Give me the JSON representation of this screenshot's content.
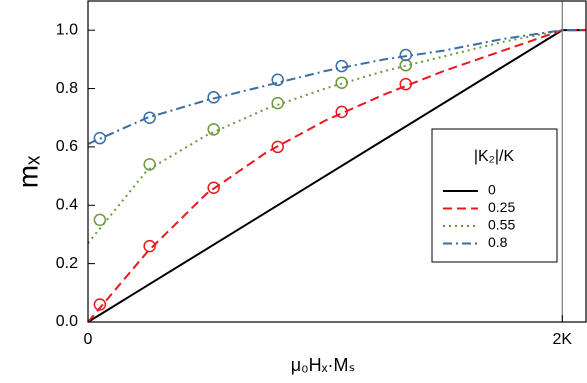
{
  "chart_data": {
    "type": "line",
    "x_label": "μ₀Hₓ·Mₛ",
    "y_label": "mₓ",
    "legend_title": "|K₂|/K",
    "xlim": [
      0,
      2.1
    ],
    "ylim": [
      0,
      1.1
    ],
    "xticks": [
      0,
      {
        "value": 2,
        "label": "2K"
      }
    ],
    "yticks": [
      {
        "value": 0,
        "label": "0.0"
      },
      0.2,
      0.4,
      0.6,
      0.8,
      {
        "value": 1,
        "label": "1.0"
      }
    ],
    "reference_x": 2,
    "series": [
      {
        "name": "0",
        "color": "#000000",
        "dash": "solid",
        "x": [
          0,
          2,
          2.1
        ],
        "values": [
          0,
          1,
          1
        ]
      },
      {
        "name": "0.25",
        "color": "#e8191c",
        "dash": "dashed",
        "x": [
          0,
          0.25,
          0.5,
          0.75,
          1,
          1.25,
          1.5,
          1.75,
          2,
          2.1
        ],
        "values": [
          0,
          0.24,
          0.44,
          0.58,
          0.69,
          0.78,
          0.86,
          0.93,
          1,
          1
        ],
        "marker_x": [
          0.05,
          0.26,
          0.53,
          0.8,
          1.07,
          1.34
        ],
        "marker_values": [
          0.06,
          0.26,
          0.46,
          0.6,
          0.72,
          0.815
        ]
      },
      {
        "name": "0.55",
        "color": "#6a9a3a",
        "dash": "dotted",
        "x": [
          0,
          0.25,
          0.5,
          0.75,
          1,
          1.25,
          1.5,
          1.75,
          2,
          2.1
        ],
        "values": [
          0.27,
          0.52,
          0.64,
          0.73,
          0.8,
          0.86,
          0.91,
          0.96,
          1,
          1
        ],
        "marker_x": [
          0.05,
          0.26,
          0.53,
          0.8,
          1.07,
          1.34
        ],
        "marker_values": [
          0.35,
          0.54,
          0.66,
          0.75,
          0.82,
          0.88
        ]
      },
      {
        "name": "0.8",
        "color": "#3a6ea5",
        "dash": "dashdot",
        "x": [
          0,
          0.25,
          0.5,
          0.75,
          1,
          1.25,
          1.5,
          1.75,
          2,
          2.1
        ],
        "values": [
          0.61,
          0.7,
          0.76,
          0.81,
          0.86,
          0.9,
          0.93,
          0.97,
          1,
          1
        ],
        "marker_x": [
          0.05,
          0.26,
          0.53,
          0.8,
          1.07,
          1.34
        ],
        "marker_values": [
          0.63,
          0.7,
          0.77,
          0.83,
          0.877,
          0.915
        ]
      }
    ]
  }
}
